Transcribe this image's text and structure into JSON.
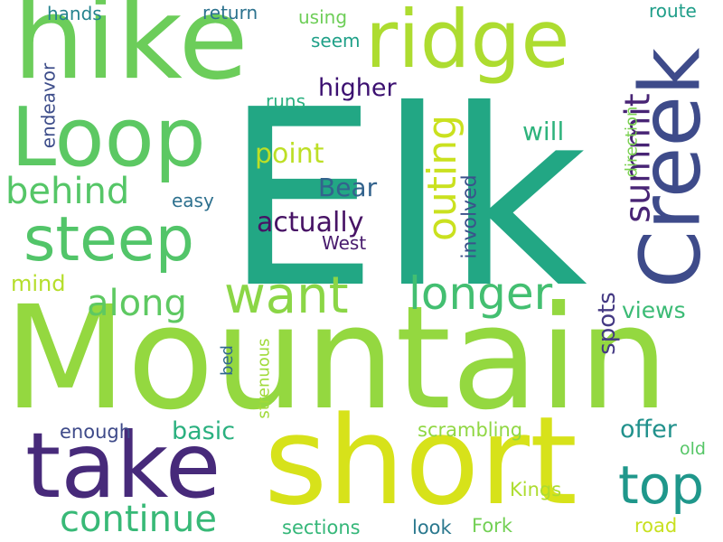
{
  "words": [
    {
      "text": "Elk",
      "color": "#22a784"
    },
    {
      "text": "Mountain",
      "color": "#94d840"
    },
    {
      "text": "short",
      "color": "#d7e21a"
    },
    {
      "text": "hike",
      "color": "#6ccd5a"
    },
    {
      "text": "Creek",
      "color": "#3e4b8a"
    },
    {
      "text": "take",
      "color": "#472a7a"
    },
    {
      "text": "ridge",
      "color": "#addc30"
    },
    {
      "text": "Loop",
      "color": "#5cc863"
    },
    {
      "text": "steep",
      "color": "#52c569"
    },
    {
      "text": "want",
      "color": "#8bd646"
    },
    {
      "text": "longer",
      "color": "#43bf71"
    },
    {
      "text": "top",
      "color": "#1f978b"
    },
    {
      "text": "continue",
      "color": "#38b977"
    },
    {
      "text": "outing",
      "color": "#cae11f"
    },
    {
      "text": "behind",
      "color": "#55c667"
    },
    {
      "text": "along",
      "color": "#5ec962"
    },
    {
      "text": "summit",
      "color": "#482475"
    },
    {
      "text": "actually",
      "color": "#471365"
    },
    {
      "text": "point",
      "color": "#bddf26"
    },
    {
      "text": "Bear",
      "color": "#33638d"
    },
    {
      "text": "will",
      "color": "#2eb37c"
    },
    {
      "text": "higher",
      "color": "#3b0f70"
    },
    {
      "text": "offer",
      "color": "#21918c"
    },
    {
      "text": "basic",
      "color": "#2ab07f"
    },
    {
      "text": "spots",
      "color": "#443983"
    },
    {
      "text": "views",
      "color": "#3bbb75"
    },
    {
      "text": "mind",
      "color": "#b5de2b"
    },
    {
      "text": "involved",
      "color": "#3b528b"
    },
    {
      "text": "scrambling",
      "color": "#90d743"
    },
    {
      "text": "sections",
      "color": "#35b779"
    },
    {
      "text": "enough",
      "color": "#3e4a89"
    },
    {
      "text": "Kings",
      "color": "#addc30"
    },
    {
      "text": "road",
      "color": "#c8e020"
    },
    {
      "text": "look",
      "color": "#2a788e"
    },
    {
      "text": "Fork",
      "color": "#73d055"
    },
    {
      "text": "old",
      "color": "#56c667"
    },
    {
      "text": "easy",
      "color": "#2d708e"
    },
    {
      "text": "West",
      "color": "#481b6d"
    },
    {
      "text": "runs",
      "color": "#29af7f"
    },
    {
      "text": "seem",
      "color": "#1fa088"
    },
    {
      "text": "using",
      "color": "#6ece58"
    },
    {
      "text": "return",
      "color": "#2c728e"
    },
    {
      "text": "hands",
      "color": "#25838e"
    },
    {
      "text": "route",
      "color": "#1f9e89"
    },
    {
      "text": "endeavor",
      "color": "#3d4d8a"
    },
    {
      "text": "direction",
      "color": "#7ad151"
    },
    {
      "text": "strenuous",
      "color": "#a0da39"
    },
    {
      "text": "bed",
      "color": "#31688e"
    }
  ]
}
